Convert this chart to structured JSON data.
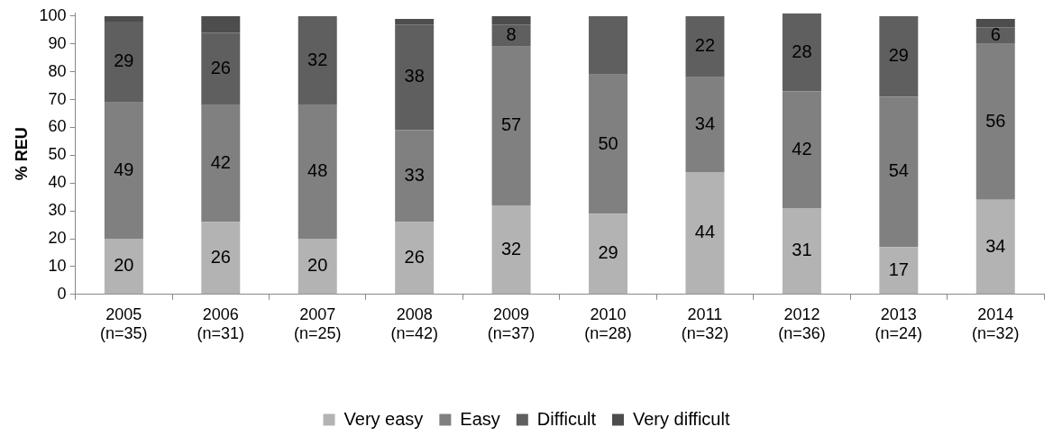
{
  "chart_data": {
    "type": "bar",
    "stacked": true,
    "ylabel": "% REU",
    "categories": [
      "2005 (n=35)",
      "2006 (n=31)",
      "2007 (n=25)",
      "2008 (n=42)",
      "2009 (n=37)",
      "2010 (n=28)",
      "2011 (n=32)",
      "2012 (n=36)",
      "2013 (n=24)",
      "2014 (n=32)"
    ],
    "series": [
      {
        "name": "Very easy",
        "color": "#b3b3b3",
        "values": [
          20,
          26,
          20,
          26,
          32,
          29,
          44,
          31,
          17,
          34
        ],
        "value_labels": [
          "20",
          "26",
          "20",
          "26",
          "32",
          "29",
          "44",
          "31",
          "17",
          "34"
        ]
      },
      {
        "name": "Easy",
        "color": "#808080",
        "values": [
          49,
          42,
          48,
          33,
          57,
          50,
          34,
          42,
          54,
          56
        ],
        "value_labels": [
          "49",
          "42",
          "48",
          "33",
          "57",
          "50",
          "34",
          "42",
          "54",
          "56"
        ]
      },
      {
        "name": "Difficult",
        "color": "#5f5f5f",
        "values": [
          29,
          26,
          32,
          38,
          8,
          21,
          22,
          28,
          29,
          6
        ],
        "value_labels": [
          "29",
          "26",
          "32",
          "38",
          "8",
          null,
          "22",
          "28",
          "29",
          "6"
        ]
      },
      {
        "name": "Very difficult",
        "color": "#4d4d4d",
        "values": [
          2,
          6,
          0,
          2,
          3,
          0,
          0,
          0,
          0,
          3
        ]
      }
    ],
    "ylim": [
      0,
      101
    ],
    "yticks": [
      0,
      10,
      20,
      30,
      40,
      50,
      60,
      70,
      80,
      90,
      100
    ],
    "legend": "bottom"
  }
}
